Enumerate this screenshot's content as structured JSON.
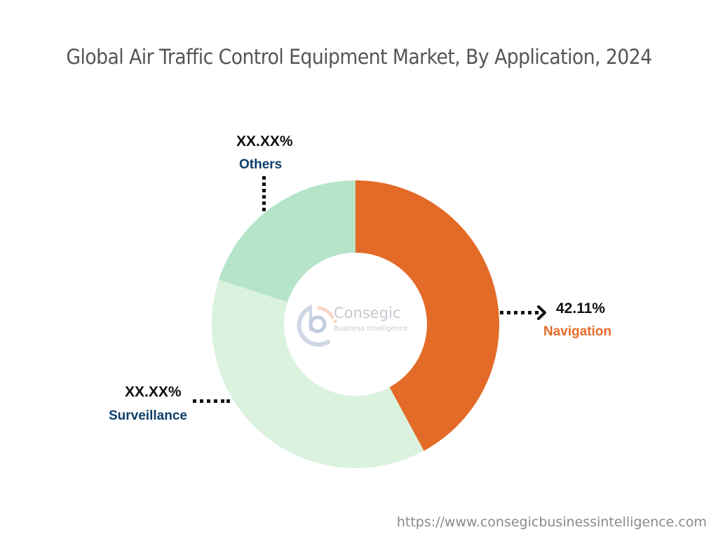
{
  "title": "Global Air Traffic Control Equipment Market, By Application, 2024",
  "footer_url": "https://www.consegicbusinessintelligence.com",
  "logo": {
    "line1": "Consegic",
    "line2": "Business Intelligence"
  },
  "labels": {
    "navigation": {
      "value": "42.11%",
      "name": "Navigation"
    },
    "surveillance": {
      "value": "XX.XX%",
      "name": "Surveillance"
    },
    "others": {
      "value": "XX.XX%",
      "name": "Others"
    }
  },
  "colors": {
    "navigation": "#E36A27",
    "surveillance": "#DAF2DE",
    "others": "#B5E4C8",
    "label_dark": "#0E3F6B",
    "label_orange": "#E36A27"
  },
  "chart_data": {
    "type": "pie",
    "variant": "donut",
    "title": "Global Air Traffic Control Equipment Market, By Application, 2024",
    "categories": [
      "Navigation",
      "Surveillance",
      "Others"
    ],
    "values": [
      42.11,
      37.9,
      19.99
    ],
    "value_labels": [
      "42.11%",
      "XX.XX%",
      "XX.XX%"
    ],
    "colors": [
      "#E36A27",
      "#DAF2DE",
      "#B5E4C8"
    ],
    "start_angle_deg": 0,
    "direction": "clockwise",
    "legend": "none (callout labels)"
  }
}
